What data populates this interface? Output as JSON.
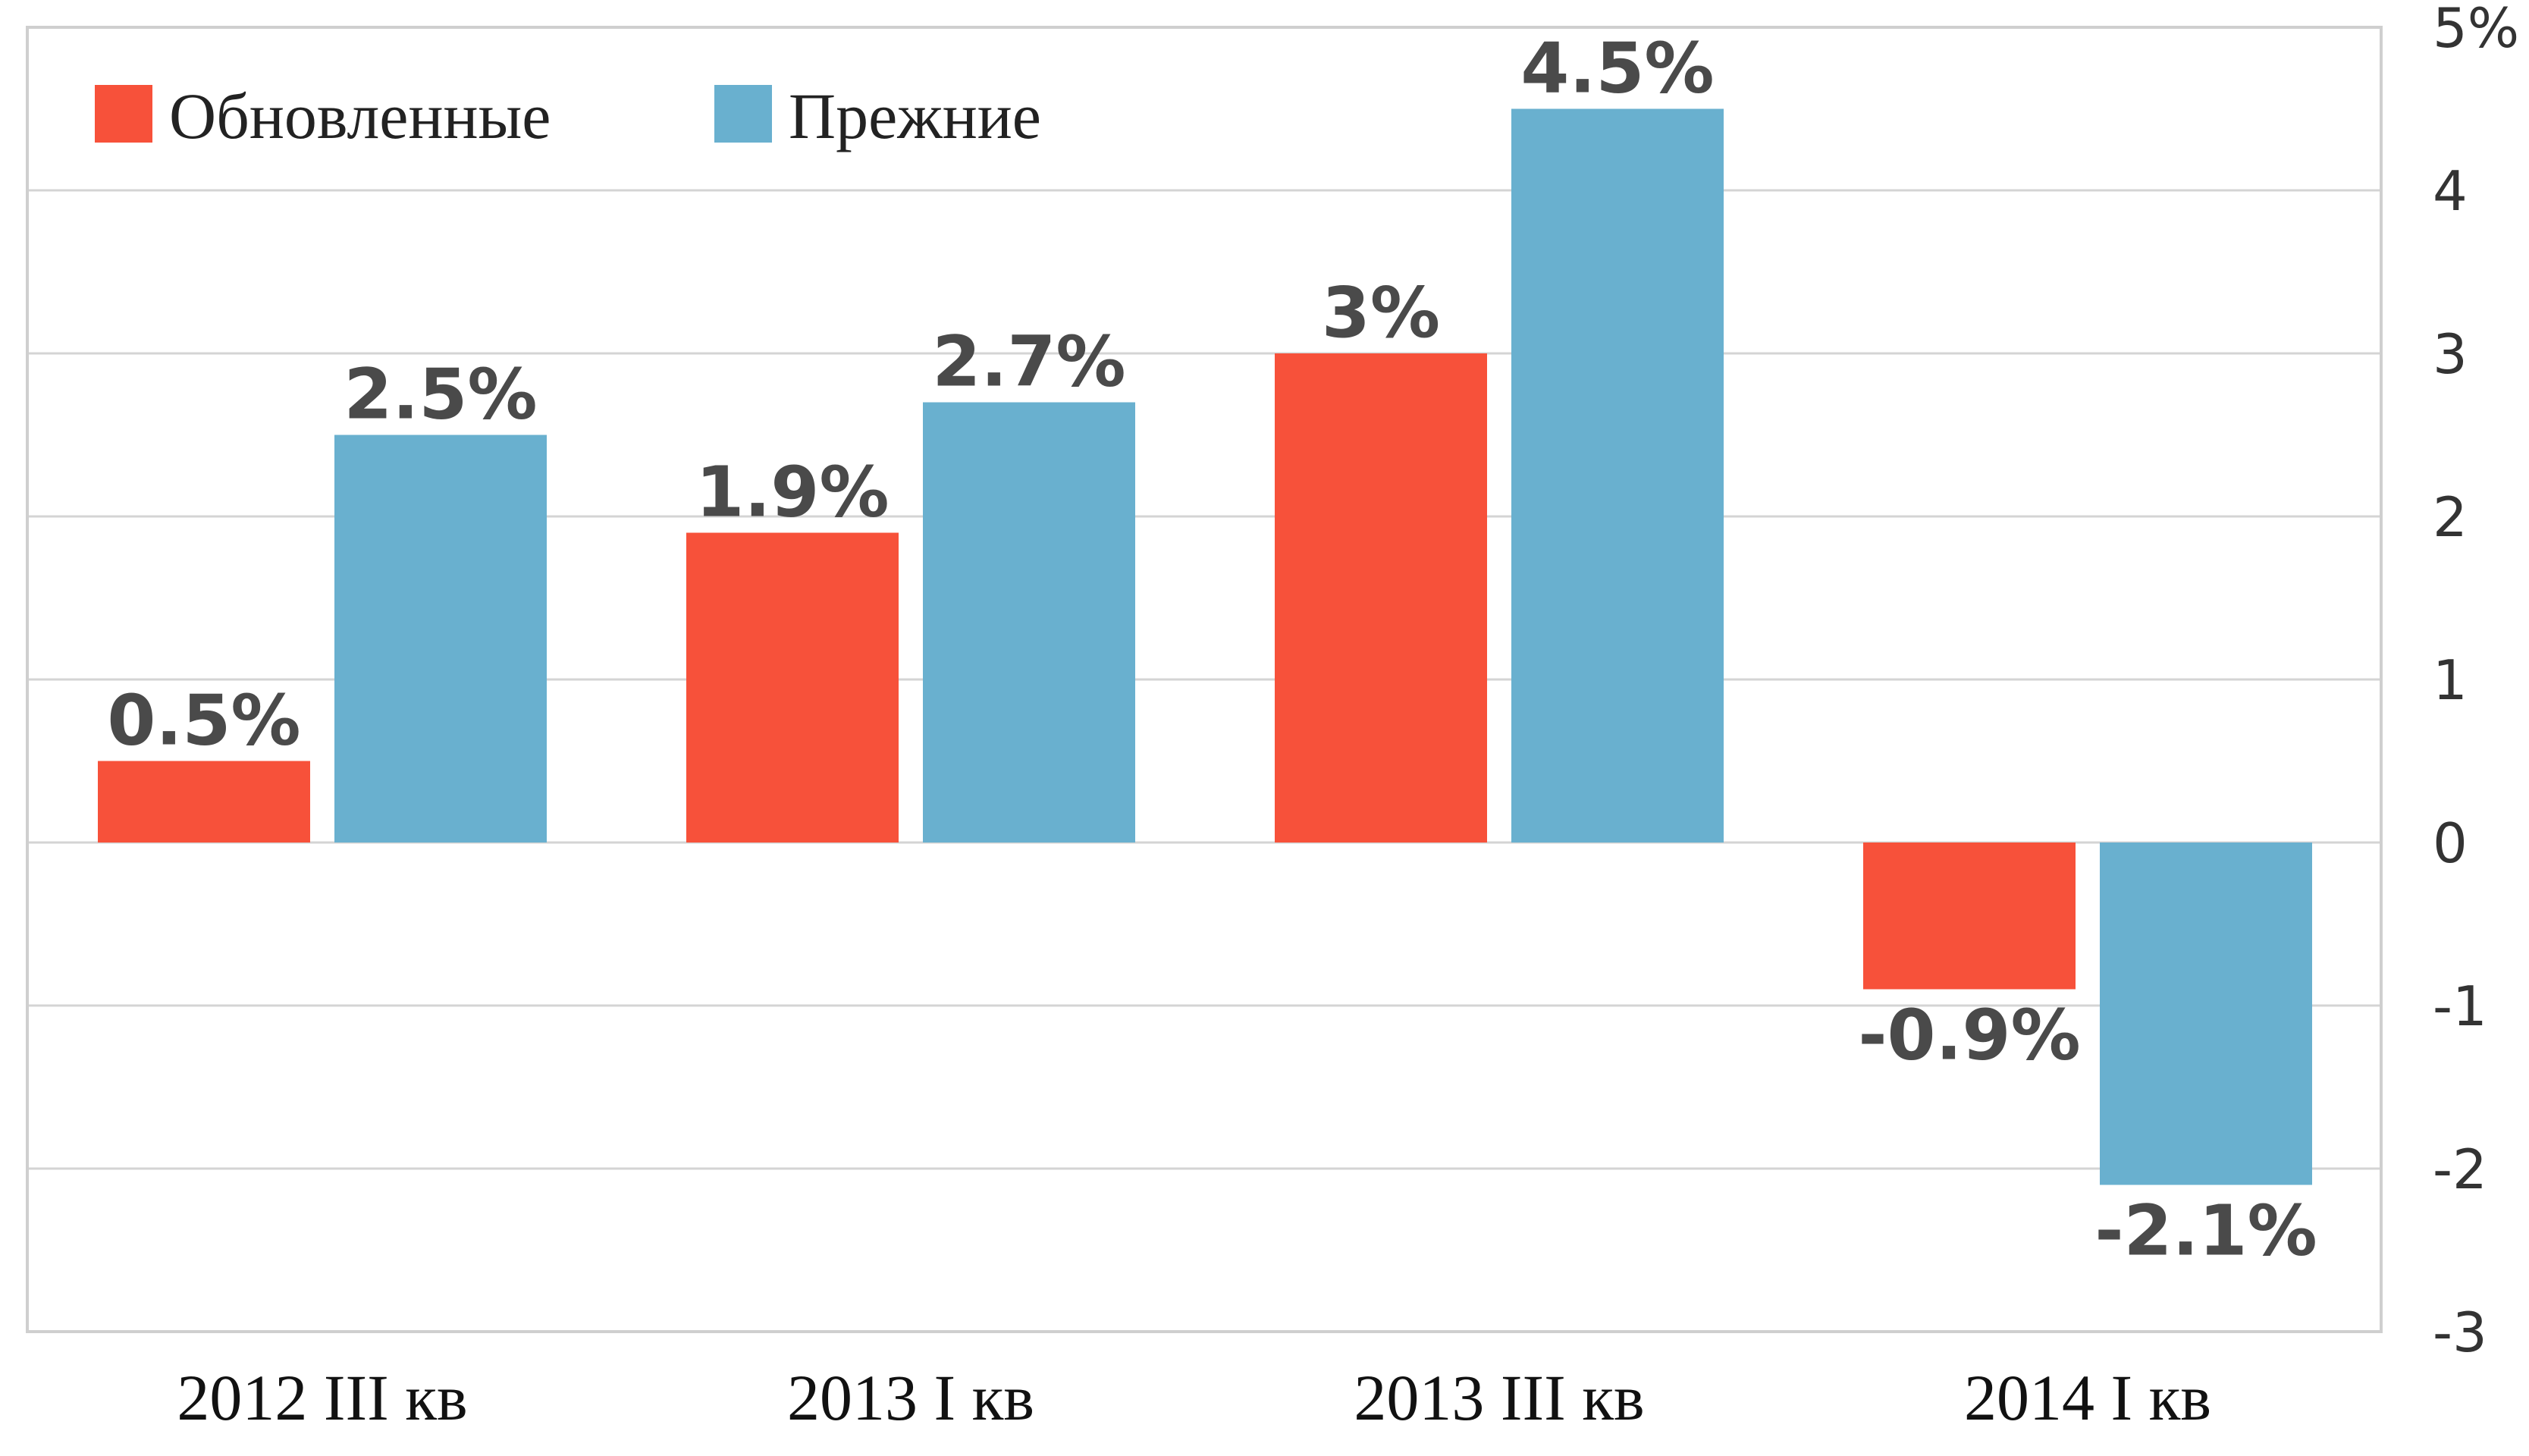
{
  "chart_data": {
    "type": "bar",
    "categories": [
      "2012  III кв",
      "2013 I кв",
      "2013 III кв",
      "2014 I кв"
    ],
    "series": [
      {
        "name": "Обновленные",
        "color": "#f7513a",
        "values": [
          0.5,
          1.9,
          3.0,
          -0.9
        ],
        "labels": [
          "0.5%",
          "1.9%",
          "3%",
          "-0.9%"
        ]
      },
      {
        "name": "Прежние",
        "color": "#69b0cf",
        "values": [
          2.5,
          2.7,
          4.5,
          -2.1
        ],
        "labels": [
          "2.5%",
          "2.7%",
          "4.5%",
          "-2.1%"
        ]
      }
    ],
    "ylim": [
      -3,
      5
    ],
    "yticks": [
      5,
      4,
      3,
      2,
      1,
      0,
      -1,
      -2,
      -3
    ],
    "ytick_labels": [
      "5%",
      "4",
      "3",
      "2",
      "1",
      "0",
      "-1",
      "-2",
      "-3"
    ],
    "y_axis_side": "right",
    "grid": true,
    "legend_position": "top-left",
    "title": "",
    "xlabel": "",
    "ylabel": ""
  }
}
